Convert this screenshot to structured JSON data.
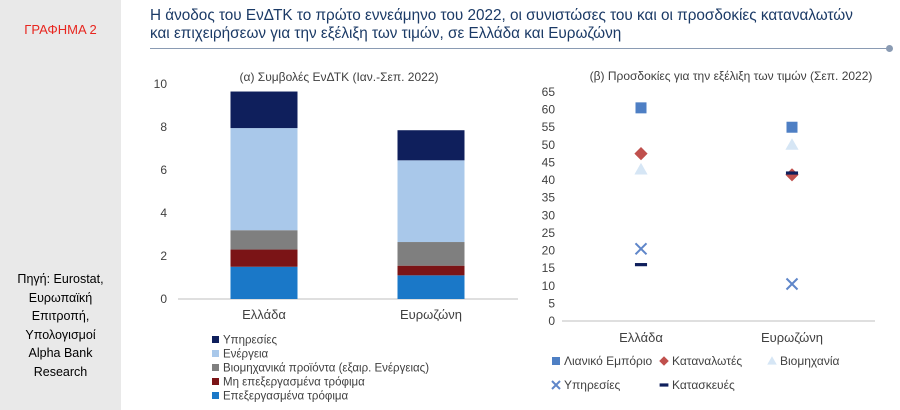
{
  "sidebar": {
    "graph_label": "ΓΡΑΦΗΜΑ 2",
    "source_lines": [
      "Πηγή: Eurostat,",
      "Ευρωπαϊκή",
      "Επιτροπή,",
      "Υπολογισμοί",
      "Alpha Bank",
      "Research"
    ]
  },
  "title_lines": [
    "Η άνοδος του ΕνΔΤΚ το πρώτο εννεάμηνο του 2022, οι συνιστώσες του και οι προσδοκίες καταναλωτών",
    "και επιχειρήσεων για την εξέλιξη των τιμών, σε Ελλάδα και Ευρωζώνη"
  ],
  "colors": {
    "services": "#0f1f5c",
    "energy": "#a9c8ea",
    "industrial_goods": "#7f7f7f",
    "unprocessed_food": "#7b1416",
    "processed_food": "#1a78c8",
    "retail": "#4e7fc4",
    "consumers": "#c0504d",
    "industry": "#d6e6f5",
    "services_x": "#5f86c9",
    "construction": "#0f1f5c",
    "axis_text": "#404040",
    "axis_line": "#bfbfbf"
  },
  "chart_data": [
    {
      "type": "bar",
      "stacked": true,
      "title": "(α) Συμβολές ΕνΔΤΚ (Ιαν.-Σεπ. 2022)",
      "categories": [
        "Ελλάδα",
        "Ευρωζώνη"
      ],
      "ylim": [
        0,
        10
      ],
      "yticks": [
        0,
        2,
        4,
        6,
        8,
        10
      ],
      "series": [
        {
          "name": "Επεξεργασμένα τρόφιμα",
          "color_key": "processed_food",
          "values": [
            1.5,
            1.1
          ]
        },
        {
          "name": "Μη επεξεργασμένα τρόφιμα",
          "color_key": "unprocessed_food",
          "values": [
            0.8,
            0.45
          ]
        },
        {
          "name": "Βιομηχανικά προϊόντα (εξαιρ. Ενέργειας)",
          "color_key": "industrial_goods",
          "values": [
            0.9,
            1.1
          ]
        },
        {
          "name": "Ενέργεια",
          "color_key": "energy",
          "values": [
            4.75,
            3.8
          ]
        },
        {
          "name": "Υπηρεσίες",
          "color_key": "services",
          "values": [
            1.7,
            1.4
          ]
        }
      ],
      "legend_order": [
        "Υπηρεσίες",
        "Ενέργεια",
        "Βιομηχανικά προϊόντα (εξαιρ. Ενέργειας)",
        "Μη επεξεργασμένα τρόφιμα",
        "Επεξεργασμένα τρόφιμα"
      ],
      "legend_position": "bottom-left"
    },
    {
      "type": "scatter",
      "title": "(β) Προσδοκίες για την εξέλιξη των τιμών (Σεπ. 2022)",
      "categories": [
        "Ελλάδα",
        "Ευρωζώνη"
      ],
      "ylim": [
        0,
        65
      ],
      "yticks": [
        0,
        5,
        10,
        15,
        20,
        25,
        30,
        35,
        40,
        45,
        50,
        55,
        60,
        65
      ],
      "series": [
        {
          "name": "Λιανικό Εμπόριο",
          "marker": "square",
          "color_key": "retail",
          "values": [
            60.5,
            55
          ]
        },
        {
          "name": "Καταναλωτές",
          "marker": "diamond",
          "color_key": "consumers",
          "values": [
            47.5,
            41.5
          ]
        },
        {
          "name": "Βιομηχανία",
          "marker": "triangle",
          "color_key": "industry",
          "values": [
            43,
            50
          ]
        },
        {
          "name": "Υπηρεσίες",
          "marker": "x",
          "color_key": "services_x",
          "values": [
            20.5,
            10.5
          ]
        },
        {
          "name": "Κατασκευές",
          "marker": "dash",
          "color_key": "construction",
          "values": [
            16,
            42
          ]
        }
      ],
      "legend_position": "bottom"
    }
  ]
}
